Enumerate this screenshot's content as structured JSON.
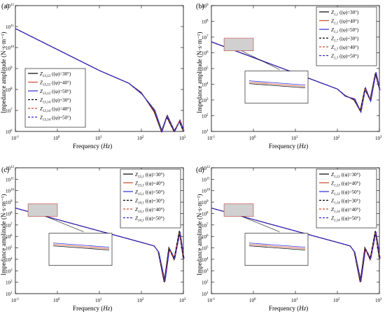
{
  "chart_data": [
    {
      "panel_label": "(a)",
      "type": "line",
      "xlabel_prefix": "Frequency (",
      "xlabel_unit": "Hz",
      "xlabel_suffix": ")",
      "ylabel": "Impedance amplitude (N·s·m⁻¹)",
      "xscale": "log",
      "yscale": "log",
      "xlim": [
        0.1,
        1000
      ],
      "ylim_exp": [
        6,
        12
      ],
      "legend_position": "bottom-left",
      "inset": false,
      "series": [
        {
          "name": "Z13,13 (⟨φ⟩=30°)",
          "sub": "13,13",
          "phi": "((φ)=30°)",
          "color": "#000000",
          "dash": "solid"
        },
        {
          "name": "Z13,13 (⟨φ⟩=40°)",
          "sub": "13,13",
          "phi": "((φ)=40°)",
          "color": "#d04a2a",
          "dash": "solid"
        },
        {
          "name": "Z13,13 (⟨φ⟩=50°)",
          "sub": "13,13",
          "phi": "((φ)=50°)",
          "color": "#2b2bd6",
          "dash": "solid"
        },
        {
          "name": "Z13,14 (⟨φ⟩=30°)",
          "sub": "13,14",
          "phi": "((φ)=30°)",
          "color": "#000000",
          "dash": "dashed"
        },
        {
          "name": "Z13,14 (⟨φ⟩=40°)",
          "sub": "13,14",
          "phi": "((φ)=40°)",
          "color": "#d04a2a",
          "dash": "dashed"
        },
        {
          "name": "Z13,14 (⟨φ⟩=50°)",
          "sub": "13,14",
          "phi": "((φ)=50°)",
          "color": "#2b2bd6",
          "dash": "dashed"
        }
      ],
      "baseline": {
        "x": [
          0.1,
          1,
          10,
          50
        ],
        "y": [
          80000000000.0,
          8000000000.0,
          800000000.0,
          200000000.0
        ]
      },
      "high_freq": {
        "x": [
          100,
          200,
          300,
          400,
          600,
          800,
          1000
        ],
        "y": [
          70000000.0,
          9000000.0,
          1000000.0,
          5000000.0,
          1000000.0,
          3000000.0,
          1000000.0
        ]
      }
    },
    {
      "panel_label": "(b)",
      "type": "line",
      "xlabel_prefix": "Frequency (",
      "xlabel_unit": "Hz",
      "xlabel_suffix": ")",
      "ylabel": "Impedance amplitude (N·s·m⁻¹)",
      "xscale": "log",
      "yscale": "log",
      "xlim": [
        0.1,
        1000
      ],
      "ylim_exp": [
        1,
        9
      ],
      "legend_position": "top-right",
      "inset": true,
      "series": [
        {
          "name": "Z1,1 (⟨φ⟩=30°)",
          "sub": "1,1",
          "phi": "((φ)=30°)",
          "color": "#000000",
          "dash": "solid"
        },
        {
          "name": "Z1,1 (⟨φ⟩=40°)",
          "sub": "1,1",
          "phi": "((φ)=40°)",
          "color": "#d04a2a",
          "dash": "solid"
        },
        {
          "name": "Z1,1 (⟨φ⟩=50°)",
          "sub": "1,1",
          "phi": "((φ)=50°)",
          "color": "#2b2bd6",
          "dash": "solid"
        },
        {
          "name": "Z1,7 (⟨φ⟩=30°)",
          "sub": "1,7",
          "phi": "((φ)=30°)",
          "color": "#000000",
          "dash": "dashed"
        },
        {
          "name": "Z1,7 (⟨φ⟩=40°)",
          "sub": "1,7",
          "phi": "((φ)=40°)",
          "color": "#d04a2a",
          "dash": "dashed"
        },
        {
          "name": "Z1,7 (⟨φ⟩=50°)",
          "sub": "1,7",
          "phi": "((φ)=50°)",
          "color": "#2b2bd6",
          "dash": "dashed"
        }
      ],
      "baseline": {
        "x": [
          0.1,
          1,
          10,
          100
        ],
        "y": [
          5000000.0,
          500000.0,
          50000.0,
          5000.0
        ]
      },
      "high_freq": {
        "x": [
          150,
          250,
          350,
          450,
          600,
          800,
          1000
        ],
        "y": [
          2000.0,
          1000.0,
          200.0,
          5000.0,
          1000.0,
          50000.0,
          5000.0
        ]
      }
    },
    {
      "panel_label": "(c)",
      "type": "line",
      "xlabel_prefix": "Frequency (",
      "xlabel_unit": "Hz",
      "xlabel_suffix": ")",
      "ylabel": "Impedance amplitude (N·s·m⁻¹)",
      "xscale": "log",
      "yscale": "log",
      "xlim": [
        0.1,
        1000
      ],
      "ylim_exp": [
        1,
        12
      ],
      "legend_position": "top-right",
      "inset": true,
      "series": [
        {
          "name": "Z13,1 (⟨φ⟩=30°)",
          "sub": "13,1",
          "phi": "((φ)=30°)",
          "color": "#000000",
          "dash": "solid"
        },
        {
          "name": "Z13,1 (⟨φ⟩=40°)",
          "sub": "13,1",
          "phi": "((φ)=40°)",
          "color": "#d04a2a",
          "dash": "solid"
        },
        {
          "name": "Z13,1 (⟨φ⟩=50°)",
          "sub": "13,1",
          "phi": "((φ)=50°)",
          "color": "#2b2bd6",
          "dash": "solid"
        },
        {
          "name": "Z14,1 (⟨φ⟩=30°)",
          "sub": "14,1",
          "phi": "((φ)=30°)",
          "color": "#000000",
          "dash": "dashed"
        },
        {
          "name": "Z14,1 (⟨φ⟩=40°)",
          "sub": "14,1",
          "phi": "((φ)=40°)",
          "color": "#d04a2a",
          "dash": "dashed"
        },
        {
          "name": "Z14,1 (⟨φ⟩=50°)",
          "sub": "14,1",
          "phi": "((φ)=50°)",
          "color": "#2b2bd6",
          "dash": "dashed"
        }
      ],
      "baseline": {
        "x": [
          0.1,
          1,
          10,
          100,
          200
        ],
        "y": [
          300000000.0,
          30000000.0,
          3000000.0,
          300000.0,
          150000.0
        ]
      },
      "high_freq": {
        "x": [
          250,
          350,
          450,
          600,
          800,
          1000
        ],
        "y": [
          50000.0,
          100.0,
          100000.0,
          10000.0,
          3000000.0,
          10000.0
        ]
      }
    },
    {
      "panel_label": "(d)",
      "type": "line",
      "xlabel_prefix": "Frequency (",
      "xlabel_unit": "Hz",
      "xlabel_suffix": ")",
      "ylabel": "Impedance amplitude (N·s·m⁻¹)",
      "xscale": "log",
      "yscale": "log",
      "xlim": [
        0.1,
        1000
      ],
      "ylim_exp": [
        1,
        12
      ],
      "legend_position": "top-right",
      "inset": true,
      "series": [
        {
          "name": "Z1,13 (⟨φ⟩=30°)",
          "sub": "1,13",
          "phi": "((φ)=30°)",
          "color": "#000000",
          "dash": "solid"
        },
        {
          "name": "Z1,13 (⟨φ⟩=40°)",
          "sub": "1,13",
          "phi": "((φ)=40°)",
          "color": "#d04a2a",
          "dash": "solid"
        },
        {
          "name": "Z1,13 (⟨φ⟩=50°)",
          "sub": "1,13",
          "phi": "((φ)=50°)",
          "color": "#2b2bd6",
          "dash": "solid"
        },
        {
          "name": "Z1,14 (⟨φ⟩=30°)",
          "sub": "1,14",
          "phi": "((φ)=30°)",
          "color": "#000000",
          "dash": "dashed"
        },
        {
          "name": "Z1,14 (⟨φ⟩=40°)",
          "sub": "1,14",
          "phi": "((φ)=40°)",
          "color": "#d04a2a",
          "dash": "dashed"
        },
        {
          "name": "Z1,14 (⟨φ⟩=50°)",
          "sub": "1,14",
          "phi": "((φ)=50°)",
          "color": "#2b2bd6",
          "dash": "dashed"
        }
      ],
      "baseline": {
        "x": [
          0.1,
          1,
          10,
          100,
          200
        ],
        "y": [
          300000000.0,
          30000000.0,
          3000000.0,
          300000.0,
          150000.0
        ]
      },
      "high_freq": {
        "x": [
          250,
          350,
          450,
          600,
          800,
          1000
        ],
        "y": [
          50000.0,
          100.0,
          100000.0,
          10000.0,
          3000000.0,
          10000.0
        ]
      }
    }
  ]
}
